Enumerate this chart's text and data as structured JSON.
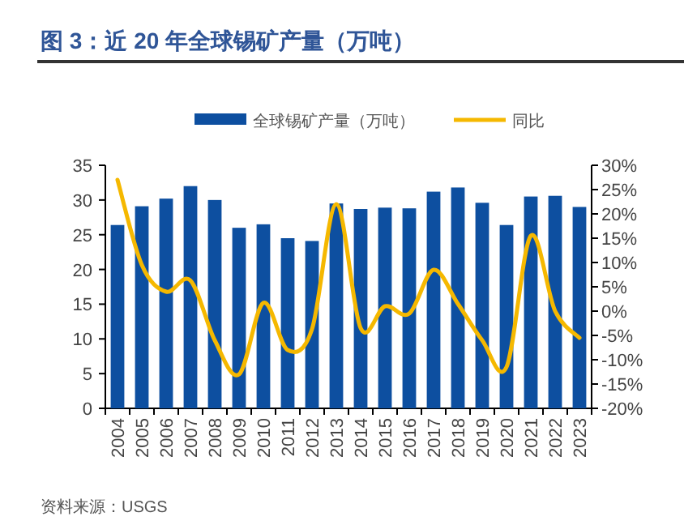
{
  "chart_data": {
    "type": "bar",
    "title": "图 3：近 20 年全球锡矿产量（万吨）",
    "categories": [
      "2004",
      "2005",
      "2006",
      "2007",
      "2008",
      "2009",
      "2010",
      "2011",
      "2012",
      "2013",
      "2014",
      "2015",
      "2016",
      "2017",
      "2018",
      "2019",
      "2020",
      "2021",
      "2022",
      "2023"
    ],
    "series": [
      {
        "name": "全球锡矿产量（万吨）",
        "color": "#0d4fa0",
        "values": [
          26.4,
          29.1,
          30.2,
          32.0,
          30.0,
          26.0,
          26.5,
          24.5,
          24.1,
          29.5,
          28.7,
          28.9,
          28.8,
          31.2,
          31.8,
          29.6,
          26.4,
          30.5,
          30.6,
          29.0
        ]
      },
      {
        "name": "同比",
        "type": "line",
        "axis": "y2",
        "color": "#f5b800",
        "values": [
          27,
          9.5,
          4,
          6.3,
          -6,
          -13,
          1.7,
          -8,
          -3.7,
          22,
          -3.5,
          1,
          -0.5,
          8.5,
          1.5,
          -6,
          -11.5,
          15.5,
          0,
          -5.5
        ]
      }
    ],
    "ylim": [
      0,
      35
    ],
    "yticks": [
      0,
      5,
      10,
      15,
      20,
      25,
      30,
      35
    ],
    "y2lim": [
      -20,
      30
    ],
    "y2ticks": [
      {
        "value": -20,
        "label": "-20%"
      },
      {
        "value": -15,
        "label": "-15%"
      },
      {
        "value": -10,
        "label": "-10%"
      },
      {
        "value": -5,
        "label": "-5%"
      },
      {
        "value": 0,
        "label": "0%"
      },
      {
        "value": 5,
        "label": "5%"
      },
      {
        "value": 10,
        "label": "10%"
      },
      {
        "value": 15,
        "label": "15%"
      },
      {
        "value": 20,
        "label": "20%"
      },
      {
        "value": 25,
        "label": "25%"
      },
      {
        "value": 30,
        "label": "30%"
      }
    ],
    "legend": "top",
    "grid": false,
    "annotations": [
      "资料来源：USGS"
    ]
  }
}
